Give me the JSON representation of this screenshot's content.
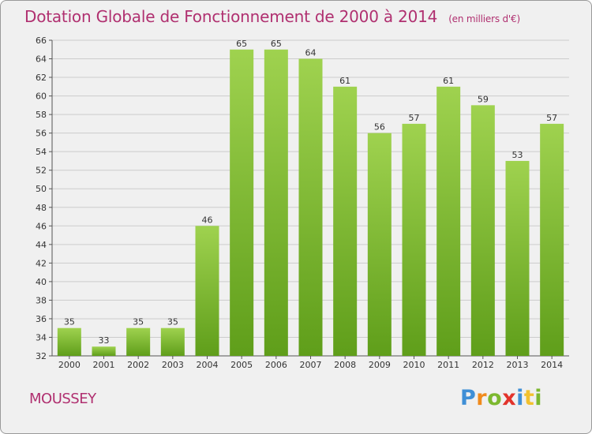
{
  "title": "Dotation Globale de Fonctionnement de 2000 à 2014",
  "unit_note": "(en milliers d'€)",
  "commune": "MOUSSEY",
  "logo": {
    "letters": [
      "P",
      "r",
      "o",
      "x",
      "i",
      "t",
      "i"
    ],
    "colors": [
      "#3f8fd6",
      "#f08a1c",
      "#7cb82f",
      "#e2332b",
      "#3f8fd6",
      "#f2c12e",
      "#7cb82f"
    ]
  },
  "chart_data": {
    "type": "bar",
    "title": "Dotation Globale de Fonctionnement de 2000 à 2014",
    "subtitle": "(en milliers d'€)",
    "xlabel": "",
    "ylabel": "",
    "categories": [
      "2000",
      "2001",
      "2002",
      "2003",
      "2004",
      "2005",
      "2006",
      "2007",
      "2008",
      "2009",
      "2010",
      "2011",
      "2012",
      "2013",
      "2014"
    ],
    "values": [
      35,
      33,
      35,
      35,
      46,
      65,
      65,
      64,
      61,
      56,
      57,
      61,
      59,
      53,
      57
    ],
    "ylim": [
      32,
      66
    ],
    "yticks": [
      32,
      34,
      36,
      38,
      40,
      42,
      44,
      46,
      48,
      50,
      52,
      54,
      56,
      58,
      60,
      62,
      64,
      66
    ],
    "grid": true,
    "bar_color_light": "#9fd24f",
    "bar_color_dark": "#5f9e1a",
    "grid_color": "#cccccc",
    "text_color": "#b03070"
  }
}
